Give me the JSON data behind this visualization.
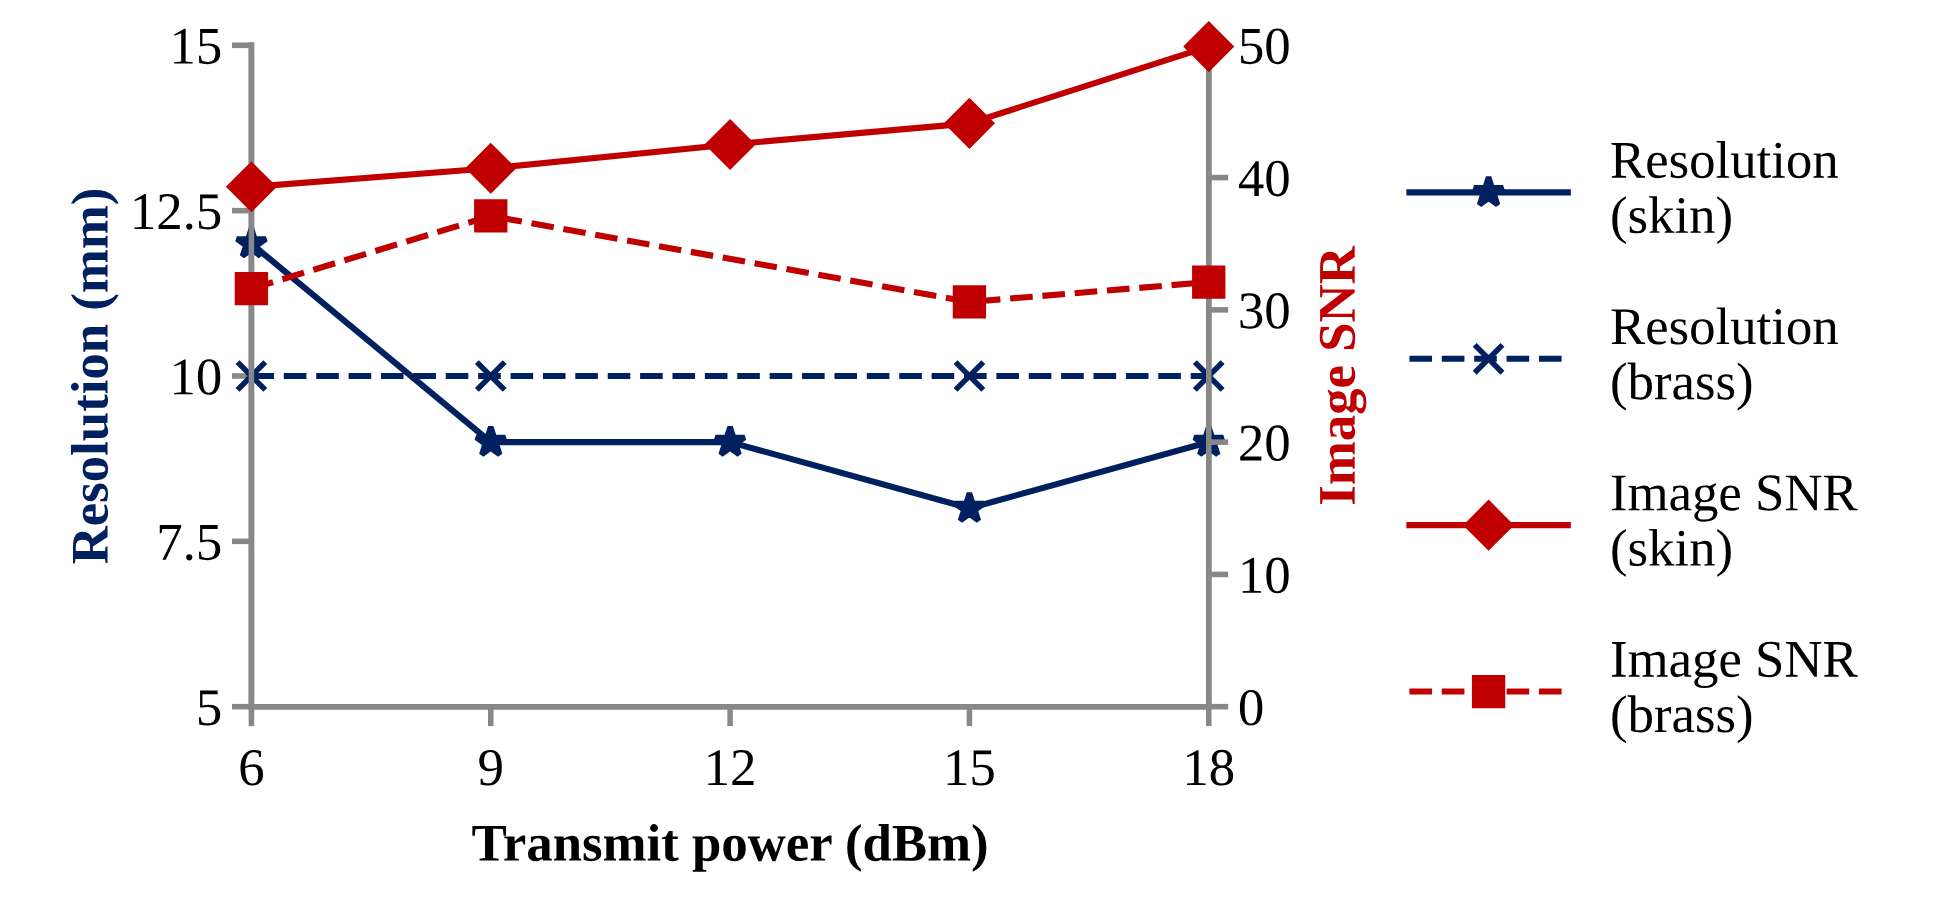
{
  "chart_data": {
    "type": "line",
    "xlabel": "Transmit power (dBm)",
    "ylabel": "Resolution (mm)",
    "y2label": "Image SNR",
    "x": [
      6,
      9,
      12,
      15,
      18
    ],
    "xlim": [
      6,
      18
    ],
    "xticks": [
      6,
      9,
      12,
      15,
      18
    ],
    "ylim": [
      5,
      15
    ],
    "yticks": [
      5,
      7.5,
      10,
      12.5,
      15
    ],
    "y2lim": [
      0,
      50
    ],
    "y2ticks": [
      0,
      10,
      20,
      30,
      40,
      50
    ],
    "grid": false,
    "legend": "right",
    "series": [
      {
        "name": "Resolution\n(skin)",
        "color": "#002060",
        "values": [
          12,
          9,
          9,
          8,
          9
        ],
        "marker": "star",
        "line_style": "solid"
      },
      {
        "name": "Resolution\n(brass)",
        "color": "#002060",
        "values": [
          10,
          10,
          null,
          10,
          10
        ],
        "marker": "cross",
        "line_style": "dashed"
      },
      {
        "name": "Image SNR\n(skin)",
        "color": "#c00000",
        "values": [
          39.3,
          40.7,
          42.5,
          44.1,
          49.9
        ],
        "marker": "diamond",
        "line_style": "solid",
        "axis": "y2"
      },
      {
        "name": "Image SNR\n(brass)",
        "color": "#c00000",
        "values": [
          31.6,
          37.1,
          null,
          30.6,
          32.1
        ],
        "marker": "square",
        "line_style": "dashed",
        "axis": "y2"
      }
    ]
  }
}
